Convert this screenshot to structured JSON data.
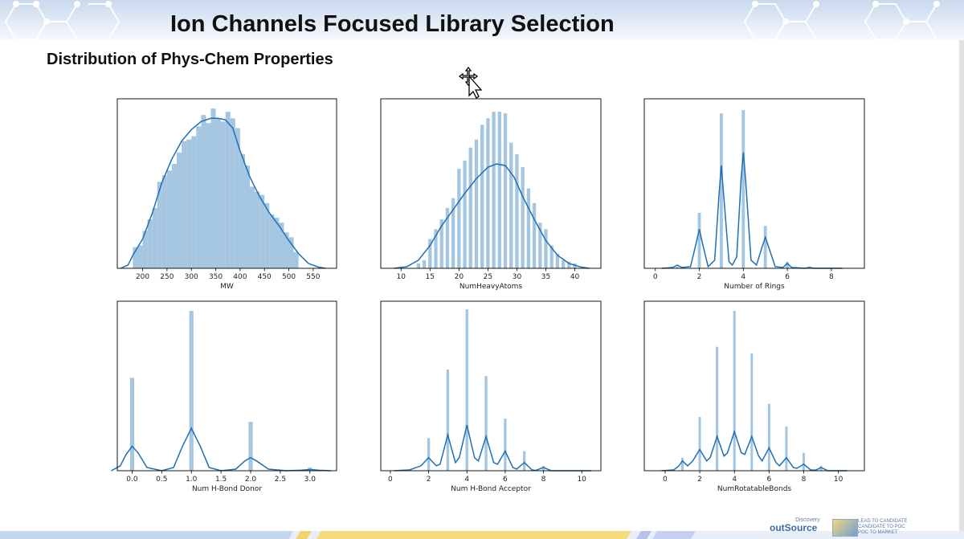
{
  "slide": {
    "title": "Ion Channels Focused Library Selection",
    "subtitle": "Distribution of Phys-Chem Properties"
  },
  "footer": {
    "logo_main": "outSource",
    "logo_super": "Discovery",
    "logo_tag_1": "LEAD TO CANDIDATE",
    "logo_tag_2": "CANDIDATE TO POC",
    "logo_tag_3": "POC TO MARKET"
  },
  "colors": {
    "bar": "#9fc3df",
    "line": "#1f6fb4",
    "axis": "#000000"
  },
  "chart_data": [
    {
      "type": "bar",
      "xlabel": "MW",
      "xlim": [
        148,
        598
      ],
      "xticks": [
        200,
        250,
        300,
        350,
        400,
        450,
        500,
        550
      ],
      "ticklabels": [
        "200",
        "250",
        "300",
        "350",
        "400",
        "450",
        "500",
        "550"
      ],
      "ymax": 1.0,
      "bins": [
        {
          "x": 180,
          "w": 10,
          "h": 0.13
        },
        {
          "x": 190,
          "w": 10,
          "h": 0.14
        },
        {
          "x": 200,
          "w": 10,
          "h": 0.23
        },
        {
          "x": 210,
          "w": 10,
          "h": 0.3
        },
        {
          "x": 220,
          "w": 10,
          "h": 0.37
        },
        {
          "x": 230,
          "w": 10,
          "h": 0.53
        },
        {
          "x": 240,
          "w": 10,
          "h": 0.57
        },
        {
          "x": 250,
          "w": 10,
          "h": 0.6
        },
        {
          "x": 260,
          "w": 10,
          "h": 0.64
        },
        {
          "x": 270,
          "w": 10,
          "h": 0.71
        },
        {
          "x": 280,
          "w": 10,
          "h": 0.78
        },
        {
          "x": 290,
          "w": 10,
          "h": 0.79
        },
        {
          "x": 300,
          "w": 10,
          "h": 0.81
        },
        {
          "x": 310,
          "w": 10,
          "h": 0.87
        },
        {
          "x": 320,
          "w": 10,
          "h": 0.94
        },
        {
          "x": 330,
          "w": 10,
          "h": 0.89
        },
        {
          "x": 340,
          "w": 10,
          "h": 0.98
        },
        {
          "x": 350,
          "w": 10,
          "h": 0.92
        },
        {
          "x": 360,
          "w": 10,
          "h": 0.9
        },
        {
          "x": 370,
          "w": 10,
          "h": 0.96
        },
        {
          "x": 380,
          "w": 10,
          "h": 0.92
        },
        {
          "x": 390,
          "w": 10,
          "h": 0.86
        },
        {
          "x": 400,
          "w": 10,
          "h": 0.7
        },
        {
          "x": 410,
          "w": 10,
          "h": 0.63
        },
        {
          "x": 420,
          "w": 10,
          "h": 0.5
        },
        {
          "x": 430,
          "w": 10,
          "h": 0.47
        },
        {
          "x": 440,
          "w": 10,
          "h": 0.45
        },
        {
          "x": 450,
          "w": 10,
          "h": 0.4
        },
        {
          "x": 460,
          "w": 10,
          "h": 0.33
        },
        {
          "x": 470,
          "w": 10,
          "h": 0.31
        },
        {
          "x": 480,
          "w": 10,
          "h": 0.28
        },
        {
          "x": 490,
          "w": 10,
          "h": 0.22
        },
        {
          "x": 500,
          "w": 10,
          "h": 0.19
        },
        {
          "x": 510,
          "w": 10,
          "h": 0.1
        }
      ],
      "kde": [
        [
          155,
          0
        ],
        [
          170,
          0.02
        ],
        [
          180,
          0.08
        ],
        [
          200,
          0.18
        ],
        [
          220,
          0.34
        ],
        [
          240,
          0.53
        ],
        [
          260,
          0.67
        ],
        [
          280,
          0.78
        ],
        [
          300,
          0.85
        ],
        [
          320,
          0.9
        ],
        [
          340,
          0.92
        ],
        [
          355,
          0.92
        ],
        [
          370,
          0.91
        ],
        [
          385,
          0.86
        ],
        [
          400,
          0.72
        ],
        [
          420,
          0.56
        ],
        [
          440,
          0.44
        ],
        [
          460,
          0.34
        ],
        [
          480,
          0.26
        ],
        [
          500,
          0.17
        ],
        [
          520,
          0.09
        ],
        [
          540,
          0.03
        ],
        [
          560,
          0.008
        ],
        [
          575,
          0
        ]
      ]
    },
    {
      "type": "bar",
      "xlabel": "NumHeavyAtoms",
      "xlim": [
        6.5,
        44.5
      ],
      "xticks": [
        10,
        15,
        20,
        25,
        30,
        35,
        40
      ],
      "ticklabels": [
        "10",
        "15",
        "20",
        "25",
        "30",
        "35",
        "40"
      ],
      "ymax": 1.0,
      "bins": [
        {
          "x": 12.7,
          "w": 0.6,
          "h": 0.03
        },
        {
          "x": 13.7,
          "w": 0.6,
          "h": 0.05
        },
        {
          "x": 14.7,
          "w": 0.6,
          "h": 0.18
        },
        {
          "x": 15.7,
          "w": 0.6,
          "h": 0.24
        },
        {
          "x": 16.7,
          "w": 0.6,
          "h": 0.3
        },
        {
          "x": 17.7,
          "w": 0.6,
          "h": 0.37
        },
        {
          "x": 18.7,
          "w": 0.6,
          "h": 0.43
        },
        {
          "x": 19.7,
          "w": 0.6,
          "h": 0.61
        },
        {
          "x": 20.7,
          "w": 0.6,
          "h": 0.66
        },
        {
          "x": 21.7,
          "w": 0.6,
          "h": 0.74
        },
        {
          "x": 22.7,
          "w": 0.6,
          "h": 0.79
        },
        {
          "x": 23.7,
          "w": 0.6,
          "h": 0.88
        },
        {
          "x": 24.7,
          "w": 0.6,
          "h": 0.92
        },
        {
          "x": 25.7,
          "w": 0.6,
          "h": 0.96
        },
        {
          "x": 26.7,
          "w": 0.6,
          "h": 0.96
        },
        {
          "x": 27.7,
          "w": 0.6,
          "h": 0.95
        },
        {
          "x": 28.7,
          "w": 0.6,
          "h": 0.77
        },
        {
          "x": 29.7,
          "w": 0.6,
          "h": 0.7
        },
        {
          "x": 30.7,
          "w": 0.6,
          "h": 0.62
        },
        {
          "x": 31.7,
          "w": 0.6,
          "h": 0.49
        },
        {
          "x": 32.7,
          "w": 0.6,
          "h": 0.4
        },
        {
          "x": 33.7,
          "w": 0.6,
          "h": 0.28
        },
        {
          "x": 34.7,
          "w": 0.6,
          "h": 0.24
        },
        {
          "x": 35.7,
          "w": 0.6,
          "h": 0.14
        },
        {
          "x": 36.7,
          "w": 0.6,
          "h": 0.09
        },
        {
          "x": 37.7,
          "w": 0.6,
          "h": 0.05
        },
        {
          "x": 38.7,
          "w": 0.6,
          "h": 0.04
        },
        {
          "x": 39.7,
          "w": 0.6,
          "h": 0.03
        }
      ],
      "kde": [
        [
          8.8,
          0
        ],
        [
          11,
          0.01
        ],
        [
          13,
          0.05
        ],
        [
          15,
          0.14
        ],
        [
          17,
          0.26
        ],
        [
          19,
          0.36
        ],
        [
          21,
          0.46
        ],
        [
          23,
          0.55
        ],
        [
          25,
          0.62
        ],
        [
          26.5,
          0.64
        ],
        [
          28,
          0.63
        ],
        [
          29.5,
          0.56
        ],
        [
          31,
          0.44
        ],
        [
          33,
          0.3
        ],
        [
          35,
          0.17
        ],
        [
          37,
          0.08
        ],
        [
          39,
          0.03
        ],
        [
          41,
          0.008
        ],
        [
          42.5,
          0
        ]
      ]
    },
    {
      "type": "bar",
      "xlabel": "Number of Rings",
      "xlim": [
        -0.5,
        9.5
      ],
      "xticks": [
        0,
        2,
        4,
        6,
        8
      ],
      "ticklabels": [
        "0",
        "2",
        "4",
        "6",
        "8"
      ],
      "ymax": 1.0,
      "bins": [
        {
          "x": 0.93,
          "w": 0.14,
          "h": 0.01
        },
        {
          "x": 1.93,
          "w": 0.14,
          "h": 0.34
        },
        {
          "x": 2.93,
          "w": 0.14,
          "h": 0.95
        },
        {
          "x": 3.93,
          "w": 0.14,
          "h": 0.97
        },
        {
          "x": 4.93,
          "w": 0.14,
          "h": 0.26
        },
        {
          "x": 5.93,
          "w": 0.14,
          "h": 0.04
        },
        {
          "x": 6.93,
          "w": 0.14,
          "h": 0.01
        }
      ],
      "kde": [
        [
          0.3,
          0
        ],
        [
          0.8,
          0.005
        ],
        [
          1.0,
          0.02
        ],
        [
          1.2,
          0.005
        ],
        [
          1.6,
          0.01
        ],
        [
          1.85,
          0.15
        ],
        [
          2.0,
          0.24
        ],
        [
          2.15,
          0.15
        ],
        [
          2.4,
          0.01
        ],
        [
          2.7,
          0.05
        ],
        [
          2.9,
          0.46
        ],
        [
          3.0,
          0.63
        ],
        [
          3.1,
          0.46
        ],
        [
          3.35,
          0.04
        ],
        [
          3.5,
          0.02
        ],
        [
          3.7,
          0.07
        ],
        [
          3.9,
          0.55
        ],
        [
          4.0,
          0.71
        ],
        [
          4.1,
          0.55
        ],
        [
          4.35,
          0.05
        ],
        [
          4.6,
          0.02
        ],
        [
          4.85,
          0.13
        ],
        [
          5.0,
          0.19
        ],
        [
          5.15,
          0.13
        ],
        [
          5.45,
          0.01
        ],
        [
          5.8,
          0.005
        ],
        [
          6.0,
          0.03
        ],
        [
          6.2,
          0.005
        ],
        [
          6.8,
          0
        ],
        [
          7.0,
          0.005
        ],
        [
          7.2,
          0
        ],
        [
          8.5,
          0
        ]
      ]
    },
    {
      "type": "bar",
      "xlabel": "Num H-Bond Donor",
      "xlim": [
        -0.25,
        3.45
      ],
      "xticks": [
        0.0,
        0.5,
        1.0,
        1.5,
        2.0,
        2.5,
        3.0
      ],
      "ticklabels": [
        "0.0",
        "0.5",
        "1.0",
        "1.5",
        "2.0",
        "2.5",
        "3.0"
      ],
      "ymax": 1.0,
      "bins": [
        {
          "x": -0.035,
          "w": 0.07,
          "h": 0.57
        },
        {
          "x": 0.965,
          "w": 0.07,
          "h": 0.98
        },
        {
          "x": 1.965,
          "w": 0.07,
          "h": 0.3
        },
        {
          "x": 2.965,
          "w": 0.07,
          "h": 0.02
        }
      ],
      "kde": [
        [
          -0.35,
          0
        ],
        [
          -0.2,
          0.03
        ],
        [
          -0.1,
          0.1
        ],
        [
          0.0,
          0.15
        ],
        [
          0.1,
          0.11
        ],
        [
          0.25,
          0.02
        ],
        [
          0.5,
          0.0
        ],
        [
          0.7,
          0.02
        ],
        [
          0.85,
          0.15
        ],
        [
          1.0,
          0.26
        ],
        [
          1.15,
          0.15
        ],
        [
          1.3,
          0.02
        ],
        [
          1.5,
          0
        ],
        [
          1.75,
          0.01
        ],
        [
          1.9,
          0.06
        ],
        [
          2.0,
          0.08
        ],
        [
          2.1,
          0.06
        ],
        [
          2.3,
          0.01
        ],
        [
          2.6,
          0
        ],
        [
          2.85,
          0.003
        ],
        [
          3.0,
          0.008
        ],
        [
          3.15,
          0.003
        ],
        [
          3.35,
          0
        ]
      ]
    },
    {
      "type": "bar",
      "xlabel": "Num H-Bond Acceptor",
      "xlim": [
        -0.5,
        11.0
      ],
      "xticks": [
        0,
        2,
        4,
        6,
        8,
        10
      ],
      "ticklabels": [
        "0",
        "2",
        "4",
        "6",
        "8",
        "10"
      ],
      "ymax": 1.0,
      "bins": [
        {
          "x": 1.93,
          "w": 0.14,
          "h": 0.2
        },
        {
          "x": 2.93,
          "w": 0.14,
          "h": 0.62
        },
        {
          "x": 3.93,
          "w": 0.14,
          "h": 0.99
        },
        {
          "x": 4.93,
          "w": 0.14,
          "h": 0.58
        },
        {
          "x": 5.93,
          "w": 0.14,
          "h": 0.32
        },
        {
          "x": 6.93,
          "w": 0.14,
          "h": 0.12
        },
        {
          "x": 7.93,
          "w": 0.14,
          "h": 0.03
        }
      ],
      "kde": [
        [
          0.2,
          0
        ],
        [
          1.0,
          0.005
        ],
        [
          1.6,
          0.03
        ],
        [
          2.0,
          0.08
        ],
        [
          2.4,
          0.03
        ],
        [
          2.6,
          0.04
        ],
        [
          3.0,
          0.22
        ],
        [
          3.4,
          0.05
        ],
        [
          3.6,
          0.08
        ],
        [
          4.0,
          0.28
        ],
        [
          4.4,
          0.08
        ],
        [
          4.6,
          0.06
        ],
        [
          5.0,
          0.21
        ],
        [
          5.4,
          0.05
        ],
        [
          5.6,
          0.04
        ],
        [
          6.0,
          0.12
        ],
        [
          6.4,
          0.02
        ],
        [
          6.6,
          0.01
        ],
        [
          7.0,
          0.05
        ],
        [
          7.4,
          0.005
        ],
        [
          7.6,
          0.002
        ],
        [
          8.0,
          0.02
        ],
        [
          8.4,
          0
        ],
        [
          10.5,
          0
        ]
      ]
    },
    {
      "type": "bar",
      "xlabel": "NumRotatableBonds",
      "xlim": [
        -1.2,
        11.5
      ],
      "xticks": [
        0,
        2,
        4,
        6,
        8,
        10
      ],
      "ticklabels": [
        "0",
        "2",
        "4",
        "6",
        "8",
        "10"
      ],
      "ymax": 1.0,
      "bins": [
        {
          "x": 0.93,
          "w": 0.14,
          "h": 0.08
        },
        {
          "x": 1.93,
          "w": 0.14,
          "h": 0.33
        },
        {
          "x": 2.93,
          "w": 0.14,
          "h": 0.76
        },
        {
          "x": 3.93,
          "w": 0.14,
          "h": 0.98
        },
        {
          "x": 4.93,
          "w": 0.14,
          "h": 0.72
        },
        {
          "x": 5.93,
          "w": 0.14,
          "h": 0.41
        },
        {
          "x": 6.93,
          "w": 0.14,
          "h": 0.27
        },
        {
          "x": 7.93,
          "w": 0.14,
          "h": 0.11
        },
        {
          "x": 8.93,
          "w": 0.14,
          "h": 0.03
        }
      ],
      "kde": [
        [
          -0.2,
          0
        ],
        [
          0.5,
          0.005
        ],
        [
          0.8,
          0.03
        ],
        [
          1.0,
          0.06
        ],
        [
          1.3,
          0.03
        ],
        [
          1.6,
          0.06
        ],
        [
          2.0,
          0.13
        ],
        [
          2.4,
          0.06
        ],
        [
          2.6,
          0.08
        ],
        [
          3.0,
          0.21
        ],
        [
          3.4,
          0.09
        ],
        [
          3.6,
          0.11
        ],
        [
          4.0,
          0.24
        ],
        [
          4.4,
          0.11
        ],
        [
          4.6,
          0.1
        ],
        [
          5.0,
          0.21
        ],
        [
          5.4,
          0.09
        ],
        [
          5.6,
          0.06
        ],
        [
          6.0,
          0.14
        ],
        [
          6.4,
          0.05
        ],
        [
          6.6,
          0.03
        ],
        [
          7.0,
          0.08
        ],
        [
          7.4,
          0.02
        ],
        [
          7.6,
          0.015
        ],
        [
          8.0,
          0.04
        ],
        [
          8.4,
          0.005
        ],
        [
          8.7,
          0.004
        ],
        [
          9.0,
          0.02
        ],
        [
          9.4,
          0
        ],
        [
          10.5,
          0
        ]
      ]
    }
  ]
}
